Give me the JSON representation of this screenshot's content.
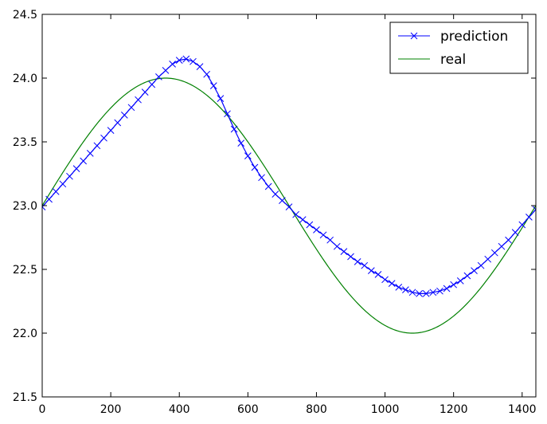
{
  "chart_data": {
    "type": "line",
    "title": "",
    "xlabel": "",
    "ylabel": "",
    "xlim": [
      0,
      1440
    ],
    "ylim": [
      21.5,
      24.5
    ],
    "x_ticks": [
      0,
      200,
      400,
      600,
      800,
      1000,
      1200,
      1400
    ],
    "x_tick_labels": [
      "0",
      "200",
      "400",
      "600",
      "800",
      "1000",
      "1200",
      "1400"
    ],
    "y_ticks": [
      21.5,
      22.0,
      22.5,
      23.0,
      23.5,
      24.0,
      24.5
    ],
    "y_tick_labels": [
      "21.5",
      "22.0",
      "22.5",
      "23.0",
      "23.5",
      "24.0",
      "24.5"
    ],
    "grid": false,
    "legend_position": "top-right",
    "series": [
      {
        "name": "prediction",
        "color": "#0000ff",
        "marker": "x",
        "x": [
          0,
          20,
          40,
          60,
          80,
          100,
          120,
          140,
          160,
          180,
          200,
          220,
          240,
          260,
          280,
          300,
          320,
          340,
          360,
          380,
          400,
          420,
          440,
          460,
          480,
          500,
          520,
          540,
          560,
          580,
          600,
          620,
          640,
          660,
          680,
          700,
          720,
          740,
          760,
          780,
          800,
          820,
          840,
          860,
          880,
          900,
          920,
          940,
          960,
          980,
          1000,
          1020,
          1040,
          1060,
          1080,
          1100,
          1120,
          1140,
          1160,
          1180,
          1200,
          1220,
          1240,
          1260,
          1280,
          1300,
          1320,
          1340,
          1360,
          1380,
          1400,
          1420,
          1440
        ],
        "y": [
          22.99,
          23.05,
          23.11,
          23.17,
          23.23,
          23.29,
          23.35,
          23.41,
          23.47,
          23.53,
          23.59,
          23.65,
          23.71,
          23.77,
          23.83,
          23.89,
          23.95,
          24.01,
          24.06,
          24.11,
          24.14,
          24.15,
          24.13,
          24.09,
          24.03,
          23.94,
          23.84,
          23.72,
          23.6,
          23.49,
          23.39,
          23.3,
          23.22,
          23.15,
          23.09,
          23.04,
          22.99,
          22.93,
          22.89,
          22.85,
          22.81,
          22.77,
          22.73,
          22.68,
          22.64,
          22.6,
          22.56,
          22.53,
          22.49,
          22.46,
          22.42,
          22.39,
          22.36,
          22.34,
          22.32,
          22.31,
          22.31,
          22.32,
          22.33,
          22.35,
          22.38,
          22.41,
          22.45,
          22.49,
          22.53,
          22.58,
          22.63,
          22.68,
          22.73,
          22.79,
          22.85,
          22.91,
          22.97
        ]
      },
      {
        "name": "real",
        "color": "#008000",
        "marker": "none",
        "function": "23 + sin(2*pi*x/1440)",
        "x_range": [
          0,
          1440
        ],
        "y_min": 22.0,
        "y_max": 24.0
      }
    ]
  },
  "legend": {
    "items": [
      {
        "label": "prediction",
        "color": "#0000ff",
        "marker": "x"
      },
      {
        "label": "real",
        "color": "#008000",
        "marker": "none"
      }
    ]
  }
}
